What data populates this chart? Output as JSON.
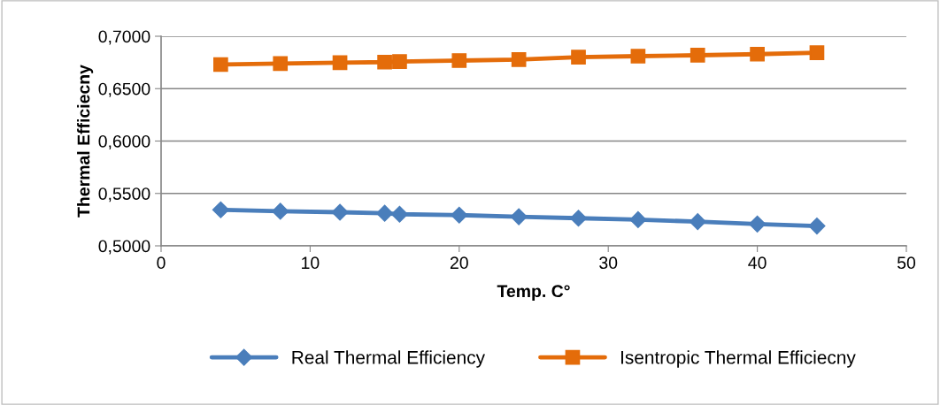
{
  "chart_data": {
    "type": "line",
    "xlabel": "Temp. C°",
    "ylabel": "Thermal Efficiecny",
    "x": [
      4,
      8,
      12,
      15,
      16,
      20,
      24,
      28,
      32,
      36,
      40,
      44
    ],
    "series": [
      {
        "name": "Real Thermal Efficiency",
        "color": "#4a7ebb",
        "marker": "diamond",
        "values": [
          0.5344,
          0.533,
          0.5321,
          0.5311,
          0.5302,
          0.5293,
          0.5278,
          0.5264,
          0.525,
          0.5231,
          0.5208,
          0.5189
        ]
      },
      {
        "name": "Isentropic Thermal Efficiecny",
        "color": "#e46c0a",
        "marker": "square",
        "values": [
          0.673,
          0.6739,
          0.6748,
          0.6753,
          0.6758,
          0.6768,
          0.6777,
          0.6801,
          0.681,
          0.6819,
          0.6829,
          0.6843
        ]
      }
    ],
    "xlim": [
      0,
      50
    ],
    "xticks": [
      0,
      10,
      20,
      30,
      40,
      50
    ],
    "ylim": [
      0.5,
      0.7
    ],
    "yticks": [
      {
        "value": 0.5,
        "label": "0,5000"
      },
      {
        "value": 0.55,
        "label": "0,5500"
      },
      {
        "value": 0.6,
        "label": "0,6000"
      },
      {
        "value": 0.65,
        "label": "0,6500"
      },
      {
        "value": 0.7,
        "label": "0,7000"
      }
    ],
    "grid": "y",
    "legend": "bottom",
    "line_style": "solid"
  }
}
